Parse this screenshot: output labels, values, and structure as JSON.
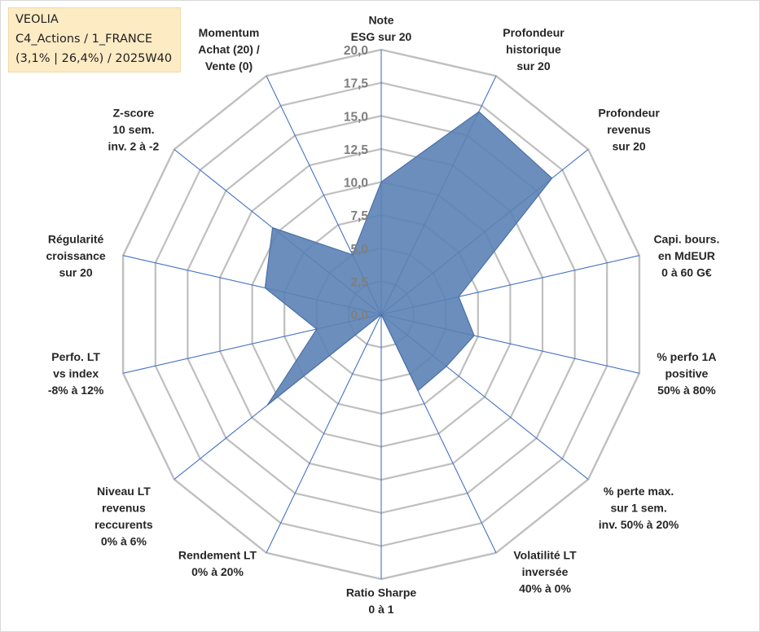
{
  "info_box": {
    "line1": "VEOLIA",
    "line2": "C4_Actions / 1_FRANCE",
    "line3": "(3,1% | 26,4%) / 2025W40"
  },
  "chart_data": {
    "type": "radar",
    "title": "",
    "rmin": 0,
    "rmax": 20,
    "ticks": [
      "0,0",
      "2,5",
      "5,0",
      "7,5",
      "10,0",
      "12,5",
      "15,0",
      "17,5",
      "20,0"
    ],
    "grid_levels": [
      2.5,
      5,
      7.5,
      10,
      12.5,
      15,
      17.5,
      20
    ],
    "axes": [
      [
        "Note",
        "ESG sur 20"
      ],
      [
        "Profondeur",
        "historique",
        "sur 20"
      ],
      [
        "Profondeur",
        "revenus",
        "sur 20"
      ],
      [
        "Capi. bours.",
        "en MdEUR",
        "0 à 60 G€"
      ],
      [
        "% perfo 1A",
        "positive",
        "50% à 80%"
      ],
      [
        "% perte max.",
        "sur 1 sem.",
        "inv. 50% à 20%"
      ],
      [
        "Volatilité LT",
        "inversée",
        "40% à 0%"
      ],
      [
        "Ratio Sharpe",
        "0 à 1"
      ],
      [
        "Rendement LT",
        "0% à 20%"
      ],
      [
        "Niveau LT",
        "revenus",
        "reccurents",
        "0% à 6%"
      ],
      [
        "Perfo. LT",
        "vs index",
        "-8% à 12%"
      ],
      [
        "Régularité",
        "croissance",
        "sur 20"
      ],
      [
        "Z-score",
        "10 sem.",
        "inv. 2 à -2"
      ],
      [
        "Momentum",
        "Achat (20) /",
        "Vente (0)"
      ]
    ],
    "series": [
      {
        "name": "VEOLIA",
        "values": [
          10,
          17,
          16.5,
          6,
          7.2,
          6.3,
          6.4,
          0,
          0,
          11,
          5,
          9,
          10.5,
          5
        ]
      }
    ],
    "colors": {
      "fill": "#5b82b5",
      "stroke": "#4a70a8",
      "spoke": "#4472c4",
      "grid": "#bfbfbf",
      "tick": "#7f7f7f"
    }
  }
}
